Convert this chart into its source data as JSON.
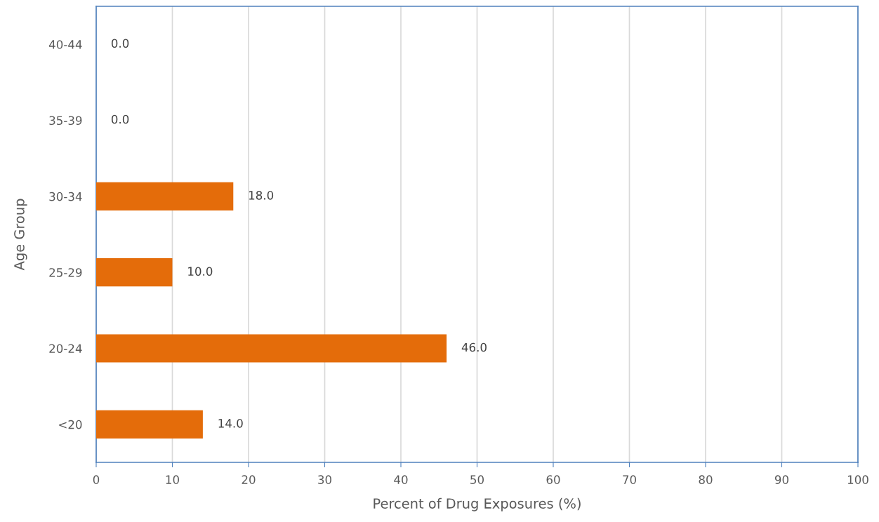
{
  "chart_data": {
    "type": "bar",
    "orientation": "horizontal",
    "xlabel": "Percent of Drug Exposures (%)",
    "ylabel": "Age Group",
    "categories": [
      "40-44",
      "35-39",
      "30-34",
      "25-29",
      "20-24",
      "<20"
    ],
    "values": [
      0,
      0,
      18,
      10,
      46,
      14
    ],
    "value_labels": [
      "0.0",
      "0.0",
      "18.0",
      "10.0",
      "46.0",
      "14.0"
    ],
    "color": "#e46c0a",
    "xlim": [
      0,
      100
    ],
    "xticks": [
      0,
      10,
      20,
      30,
      40,
      50,
      60,
      70,
      80,
      90,
      100
    ],
    "grid": "x"
  }
}
